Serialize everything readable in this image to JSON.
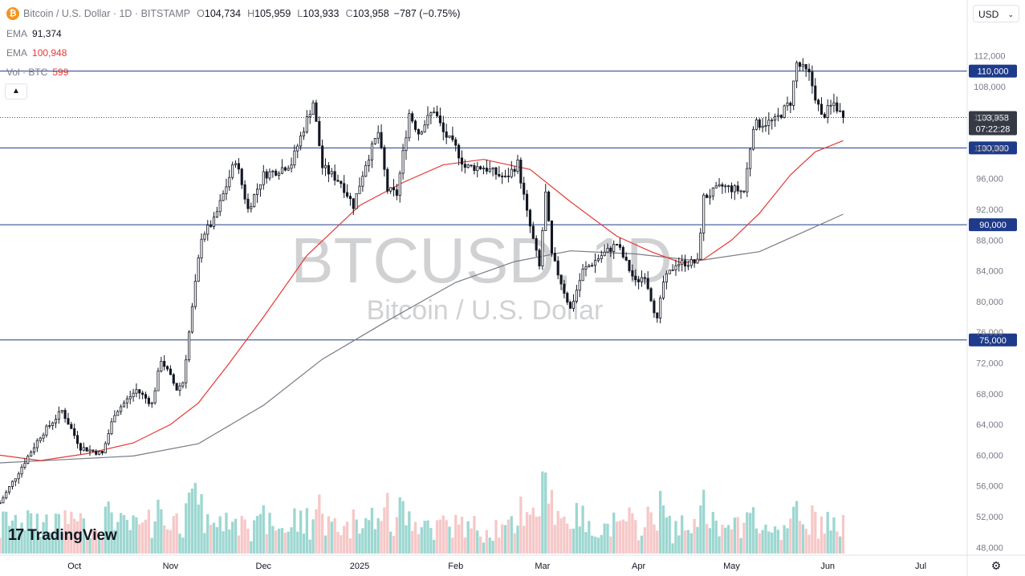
{
  "header": {
    "icon": "bitcoin-icon",
    "symbol": "Bitcoin / U.S. Dollar · 1D · BITSTAMP",
    "o_label": "O",
    "open": "104,734",
    "h_label": "H",
    "high": "105,959",
    "l_label": "L",
    "low": "103,933",
    "c_label": "C",
    "close": "103,958",
    "change": "−787 (−0.75%)"
  },
  "indicators": [
    {
      "label": "EMA",
      "value": "91,374",
      "color": "#787b86"
    },
    {
      "label": "EMA",
      "value": "100,948",
      "color": "#e53935"
    },
    {
      "label": "Vol · BTC",
      "value": "599",
      "color": "#e53935"
    }
  ],
  "currency_selector": {
    "value": "USD"
  },
  "watermark": {
    "ticker": "BTCUSD, 1D",
    "name": "Bitcoin / U.S. Dollar"
  },
  "branding": {
    "logo_text": "TradingView"
  },
  "colors": {
    "up": "#131722",
    "down": "#131722",
    "ema_fast": "#e53935",
    "ema_slow": "#787b86",
    "hline": "#1e3a8a",
    "vol_up": "#4db6ac",
    "vol_down": "#ef9a9a",
    "axis_text": "#787b86"
  },
  "chart_data": {
    "type": "candlestick",
    "price_axis": {
      "ticks": [
        48000,
        52000,
        56000,
        60000,
        64000,
        68000,
        72000,
        76000,
        80000,
        84000,
        88000,
        92000,
        96000,
        100000,
        104000,
        108000,
        112000
      ],
      "tick_labels": [
        "48,000",
        "52,000",
        "56,000",
        "60,000",
        "64,000",
        "68,000",
        "72,000",
        "76,000",
        "80,000",
        "84,000",
        "88,000",
        "92,000",
        "96,000",
        "100,000",
        "104,000",
        "108,000",
        "112,000"
      ],
      "range": [
        47200,
        118000
      ]
    },
    "time_axis": {
      "labels": [
        "Oct",
        "Nov",
        "Dec",
        "2025",
        "Feb",
        "Mar",
        "Apr",
        "May",
        "Jun",
        "Jul"
      ],
      "start": "2024-09-07",
      "end": "2025-07-16",
      "label_dates": [
        "2024-10-01",
        "2024-11-01",
        "2024-12-01",
        "2025-01-01",
        "2025-02-01",
        "2025-03-01",
        "2025-04-01",
        "2025-05-01",
        "2025-06-01",
        "2025-07-01"
      ]
    },
    "horizontal_lines": [
      {
        "value": 110000,
        "label": "110,000"
      },
      {
        "value": 100000,
        "label": "100,000"
      },
      {
        "value": 90000,
        "label": "90,000"
      },
      {
        "value": 75000,
        "label": "75,000"
      }
    ],
    "last_price": {
      "value": 103958,
      "label": "103,958",
      "countdown": "07:22:28"
    },
    "ema_fast": [
      [
        "2024-09-07",
        60000
      ],
      [
        "2024-09-20",
        59300
      ],
      [
        "2024-10-05",
        60200
      ],
      [
        "2024-10-20",
        61600
      ],
      [
        "2024-11-01",
        64000
      ],
      [
        "2024-11-10",
        66800
      ],
      [
        "2024-11-20",
        72000
      ],
      [
        "2024-12-01",
        78000
      ],
      [
        "2024-12-15",
        86000
      ],
      [
        "2025-01-01",
        92500
      ],
      [
        "2025-01-15",
        95500
      ],
      [
        "2025-01-28",
        97800
      ],
      [
        "2025-02-10",
        98500
      ],
      [
        "2025-02-25",
        97200
      ],
      [
        "2025-03-10",
        93000
      ],
      [
        "2025-03-25",
        88500
      ],
      [
        "2025-04-05",
        86500
      ],
      [
        "2025-04-15",
        85000
      ],
      [
        "2025-04-22",
        85500
      ],
      [
        "2025-05-01",
        88000
      ],
      [
        "2025-05-10",
        91500
      ],
      [
        "2025-05-20",
        96500
      ],
      [
        "2025-05-28",
        99500
      ],
      [
        "2025-06-06",
        100948
      ]
    ],
    "ema_slow": [
      [
        "2024-09-07",
        59000
      ],
      [
        "2024-10-01",
        59500
      ],
      [
        "2024-10-20",
        59900
      ],
      [
        "2024-11-10",
        61500
      ],
      [
        "2024-12-01",
        66500
      ],
      [
        "2024-12-20",
        72500
      ],
      [
        "2025-01-10",
        77500
      ],
      [
        "2025-02-01",
        82500
      ],
      [
        "2025-02-20",
        85200
      ],
      [
        "2025-03-10",
        86600
      ],
      [
        "2025-03-31",
        86200
      ],
      [
        "2025-04-20",
        85300
      ],
      [
        "2025-05-10",
        86500
      ],
      [
        "2025-05-25",
        89200
      ],
      [
        "2025-06-06",
        91374
      ]
    ]
  }
}
